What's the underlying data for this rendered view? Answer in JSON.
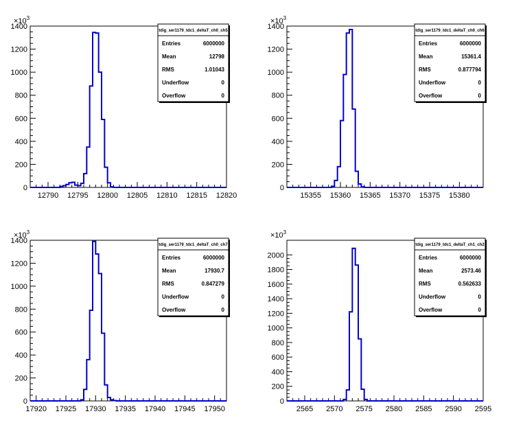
{
  "exponent_label": "×10",
  "exponent_power": "3",
  "chart_data": [
    {
      "type": "histogram",
      "title": "tdig_ser1179_tdc1_deltaT_ch0_ch5",
      "stats": [
        [
          "Entries",
          "6000000"
        ],
        [
          "Mean",
          "12798"
        ],
        [
          "RMS",
          "1.01043"
        ],
        [
          "Underflow",
          "0"
        ],
        [
          "Overflow",
          "0"
        ]
      ],
      "xlim": [
        12787,
        12820
      ],
      "xticks": [
        12790,
        12795,
        12800,
        12805,
        12810,
        12815,
        12820
      ],
      "ylim": [
        0,
        1400
      ],
      "yticks": [
        0,
        200,
        400,
        600,
        800,
        1000,
        1200,
        1400
      ],
      "bin_width": 0.5,
      "bins_x": [
        12792.0,
        12792.5,
        12793.0,
        12793.5,
        12794.0,
        12794.5,
        12795.0,
        12795.5,
        12796.0,
        12796.5,
        12797.0,
        12797.5,
        12798.0,
        12798.5,
        12799.0,
        12799.5,
        12800.0,
        12800.5
      ],
      "bins_y": [
        8,
        15,
        25,
        40,
        45,
        20,
        15,
        35,
        120,
        350,
        880,
        1345,
        1340,
        1000,
        590,
        175,
        40,
        5
      ],
      "line_color": "#0000cc"
    },
    {
      "type": "histogram",
      "title": "tdig_ser1179_tdc1_deltaT_ch0_ch6",
      "stats": [
        [
          "Entries",
          "6000000"
        ],
        [
          "Mean",
          "15361.4"
        ],
        [
          "RMS",
          "0.877794"
        ],
        [
          "Underflow",
          "0"
        ],
        [
          "Overflow",
          "0"
        ]
      ],
      "xlim": [
        15351,
        15384
      ],
      "xticks": [
        15355,
        15360,
        15365,
        15370,
        15375,
        15380
      ],
      "ylim": [
        0,
        1400
      ],
      "yticks": [
        0,
        200,
        400,
        600,
        800,
        1000,
        1200,
        1400
      ],
      "bin_width": 0.5,
      "bins_x": [
        15358.5,
        15359.0,
        15359.5,
        15360.0,
        15360.5,
        15361.0,
        15361.5,
        15362.0,
        15362.5,
        15363.0,
        15363.5
      ],
      "bins_y": [
        10,
        60,
        180,
        580,
        980,
        1340,
        1370,
        680,
        140,
        30,
        5
      ],
      "line_color": "#0000cc"
    },
    {
      "type": "histogram",
      "title": "tdig_ser1179_tdc1_deltaT_ch0_ch7",
      "stats": [
        [
          "Entries",
          "6000000"
        ],
        [
          "Mean",
          "17930.7"
        ],
        [
          "RMS",
          "0.847279"
        ],
        [
          "Underflow",
          "0"
        ],
        [
          "Overflow",
          "0"
        ]
      ],
      "xlim": [
        17919,
        17952
      ],
      "xticks": [
        17920,
        17925,
        17930,
        17935,
        17940,
        17945,
        17950
      ],
      "ylim": [
        0,
        1400
      ],
      "yticks": [
        0,
        200,
        400,
        600,
        800,
        1000,
        1200,
        1400
      ],
      "bin_width": 0.5,
      "bins_x": [
        17927.5,
        17928.0,
        17928.5,
        17929.0,
        17929.5,
        17930.0,
        17930.5,
        17931.0,
        17931.5,
        17932.0,
        17932.5,
        17933.0
      ],
      "bins_y": [
        10,
        100,
        360,
        790,
        1390,
        1280,
        1110,
        590,
        140,
        30,
        10,
        3
      ],
      "line_color": "#0000cc"
    },
    {
      "type": "histogram",
      "title": "tdig_ser1179_tdc1_deltaT_ch1_ch2",
      "stats": [
        [
          "Entries",
          "6000000"
        ],
        [
          "Mean",
          "2573.46"
        ],
        [
          "RMS",
          "0.562633"
        ],
        [
          "Underflow",
          "0"
        ],
        [
          "Overflow",
          "0"
        ]
      ],
      "xlim": [
        2562,
        2595
      ],
      "xticks": [
        2565,
        2570,
        2575,
        2580,
        2585,
        2590,
        2595
      ],
      "ylim": [
        0,
        2200
      ],
      "yticks": [
        0,
        200,
        400,
        600,
        800,
        1000,
        1200,
        1400,
        1600,
        1800,
        2000
      ],
      "bin_width": 0.5,
      "bins_x": [
        2571.5,
        2572.0,
        2572.5,
        2573.0,
        2573.5,
        2574.0,
        2574.5,
        2575.0
      ],
      "bins_y": [
        20,
        150,
        1220,
        2090,
        1860,
        850,
        160,
        20
      ],
      "line_color": "#0000cc"
    }
  ]
}
